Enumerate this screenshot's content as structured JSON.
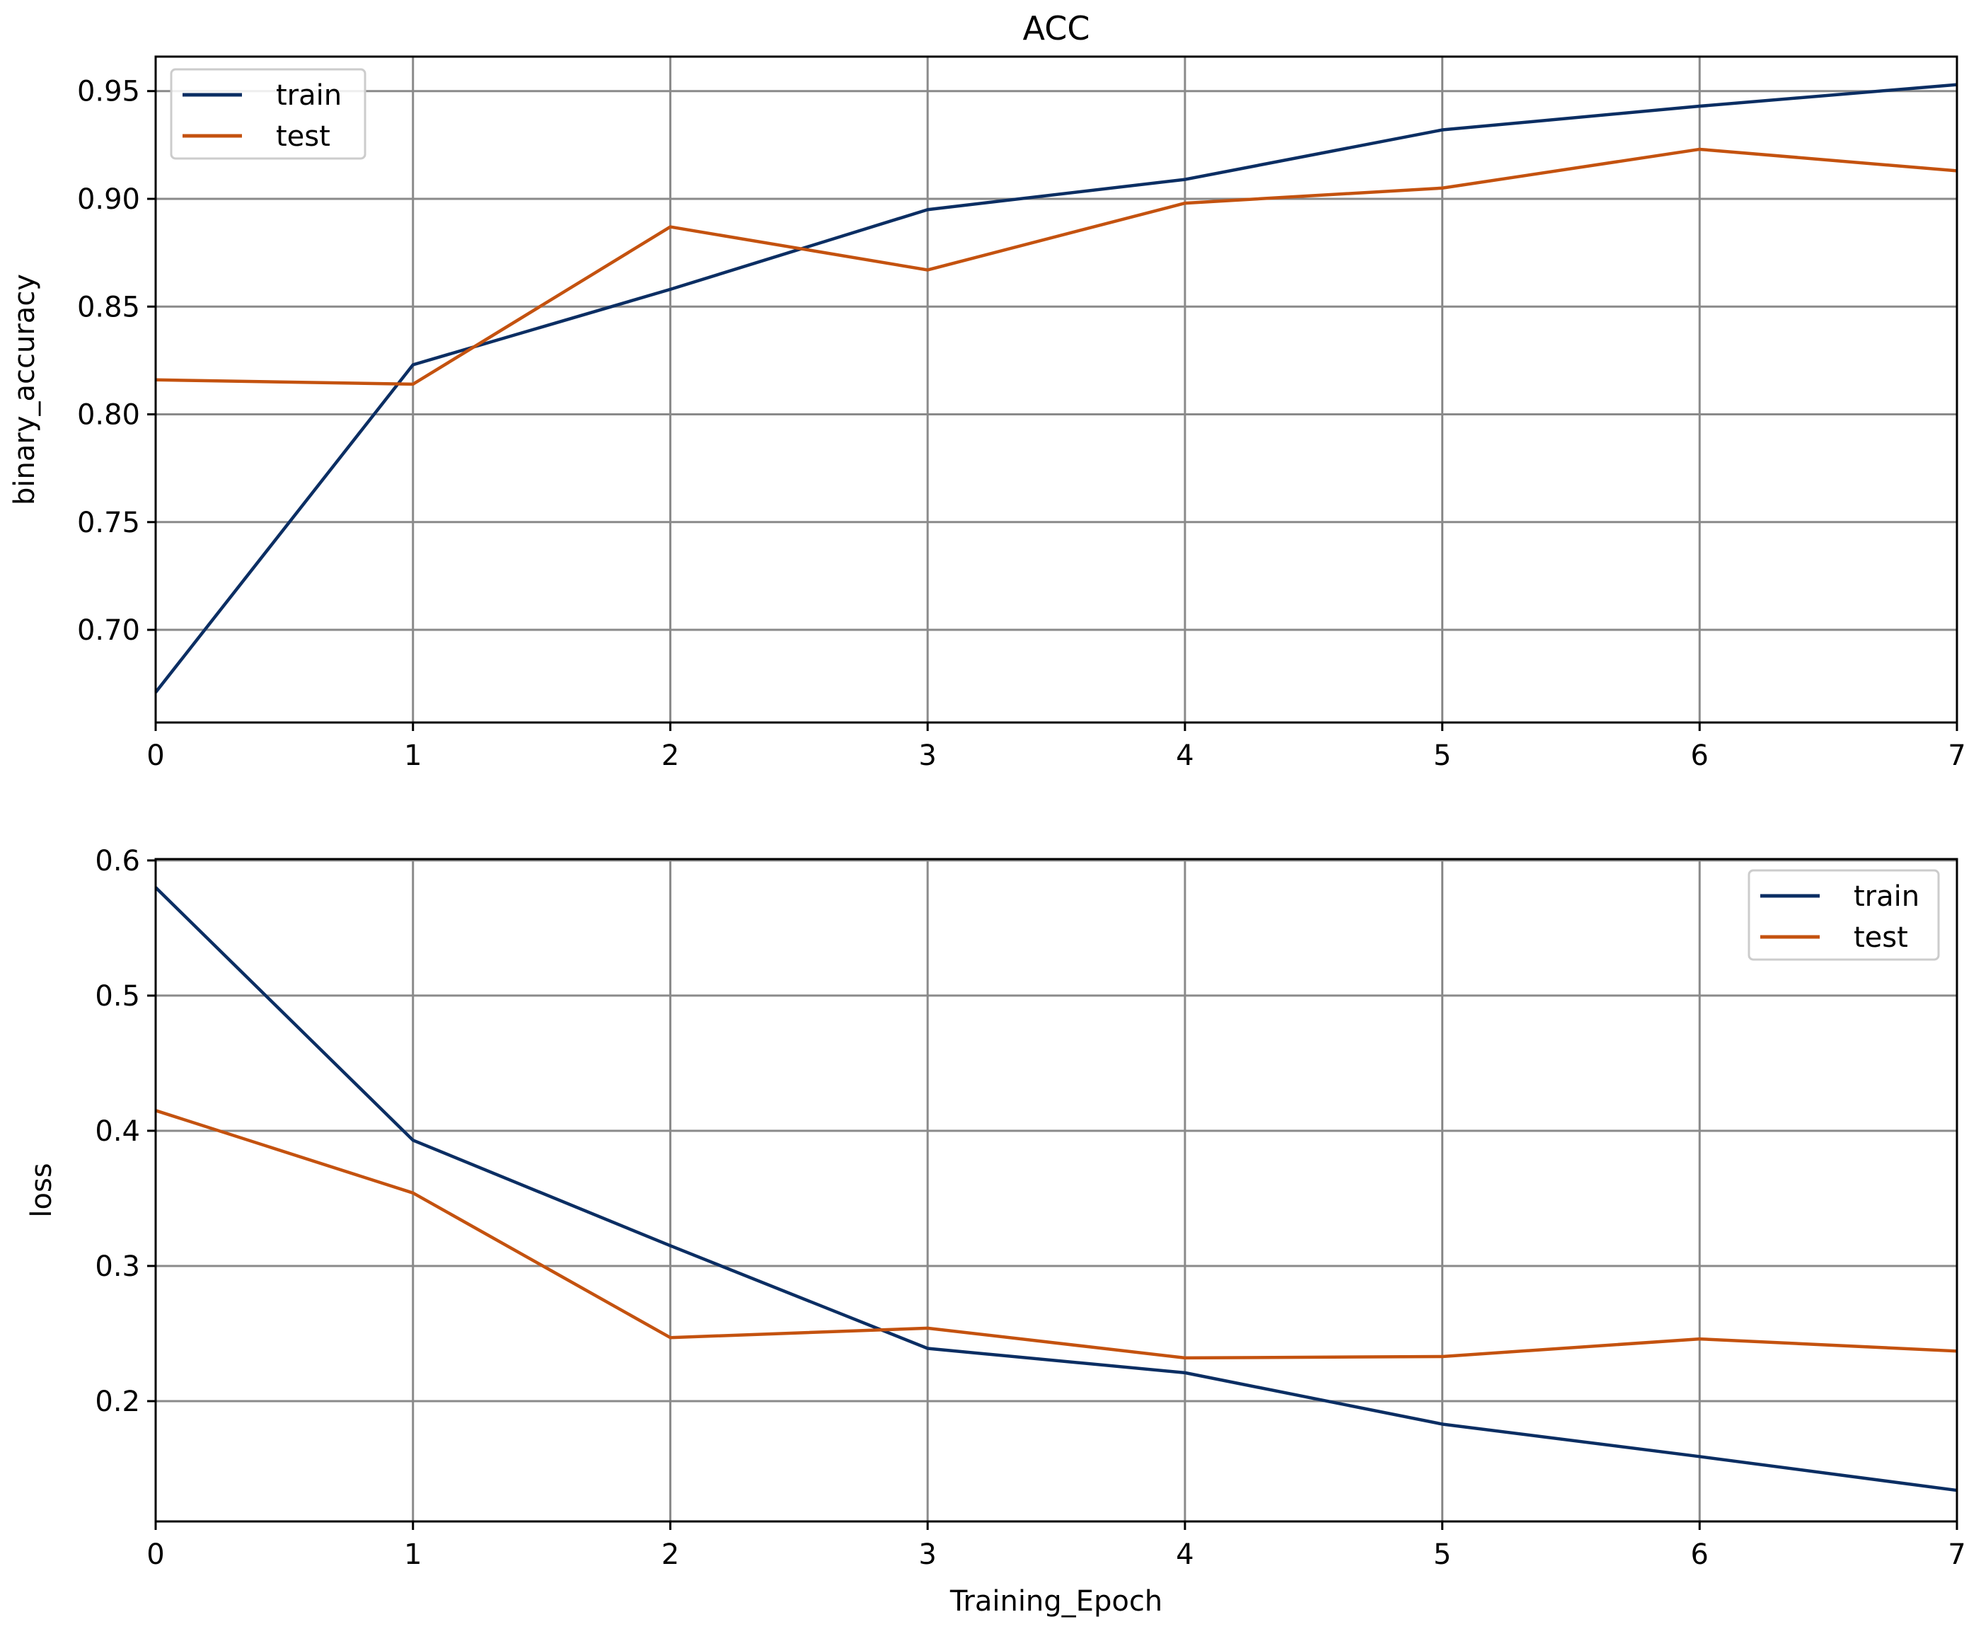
{
  "colors": {
    "train": "#0b2e63",
    "test": "#c4520f",
    "grid": "#8a8a8a",
    "frame": "#000000"
  },
  "chart_data": [
    {
      "type": "line",
      "title": "ACC",
      "xlabel": "",
      "ylabel": "binary_accuracy",
      "x": [
        0,
        1,
        2,
        3,
        4,
        5,
        6,
        7
      ],
      "xlim": [
        0,
        7
      ],
      "ylim": [
        0.657,
        0.966
      ],
      "xticks": [
        0,
        1,
        2,
        3,
        4,
        5,
        6,
        7
      ],
      "xtick_labels": [
        "0",
        "1",
        "2",
        "3",
        "4",
        "5",
        "6",
        "7"
      ],
      "yticks": [
        0.7,
        0.75,
        0.8,
        0.85,
        0.9,
        0.95
      ],
      "ytick_labels": [
        "0.70",
        "0.75",
        "0.80",
        "0.85",
        "0.90",
        "0.95"
      ],
      "grid": true,
      "legend_position": "upper-left",
      "series": [
        {
          "name": "train",
          "color_key": "train",
          "values": [
            0.671,
            0.823,
            0.858,
            0.895,
            0.909,
            0.932,
            0.943,
            0.953
          ]
        },
        {
          "name": "test",
          "color_key": "test",
          "values": [
            0.816,
            0.814,
            0.887,
            0.867,
            0.898,
            0.905,
            0.923,
            0.913
          ]
        }
      ]
    },
    {
      "type": "line",
      "title": "",
      "xlabel": "Training_Epoch",
      "ylabel": "loss",
      "x": [
        0,
        1,
        2,
        3,
        4,
        5,
        6,
        7
      ],
      "xlim": [
        0,
        7
      ],
      "ylim": [
        0.111,
        0.601
      ],
      "xticks": [
        0,
        1,
        2,
        3,
        4,
        5,
        6,
        7
      ],
      "xtick_labels": [
        "0",
        "1",
        "2",
        "3",
        "4",
        "5",
        "6",
        "7"
      ],
      "yticks": [
        0.2,
        0.3,
        0.4,
        0.5,
        0.6
      ],
      "ytick_labels": [
        "0.2",
        "0.3",
        "0.4",
        "0.5",
        "0.6"
      ],
      "grid": true,
      "legend_position": "upper-right",
      "series": [
        {
          "name": "train",
          "color_key": "train",
          "values": [
            0.58,
            0.393,
            0.315,
            0.239,
            0.221,
            0.183,
            0.159,
            0.134
          ]
        },
        {
          "name": "test",
          "color_key": "test",
          "values": [
            0.415,
            0.354,
            0.247,
            0.254,
            0.232,
            0.233,
            0.246,
            0.237
          ]
        }
      ]
    }
  ]
}
